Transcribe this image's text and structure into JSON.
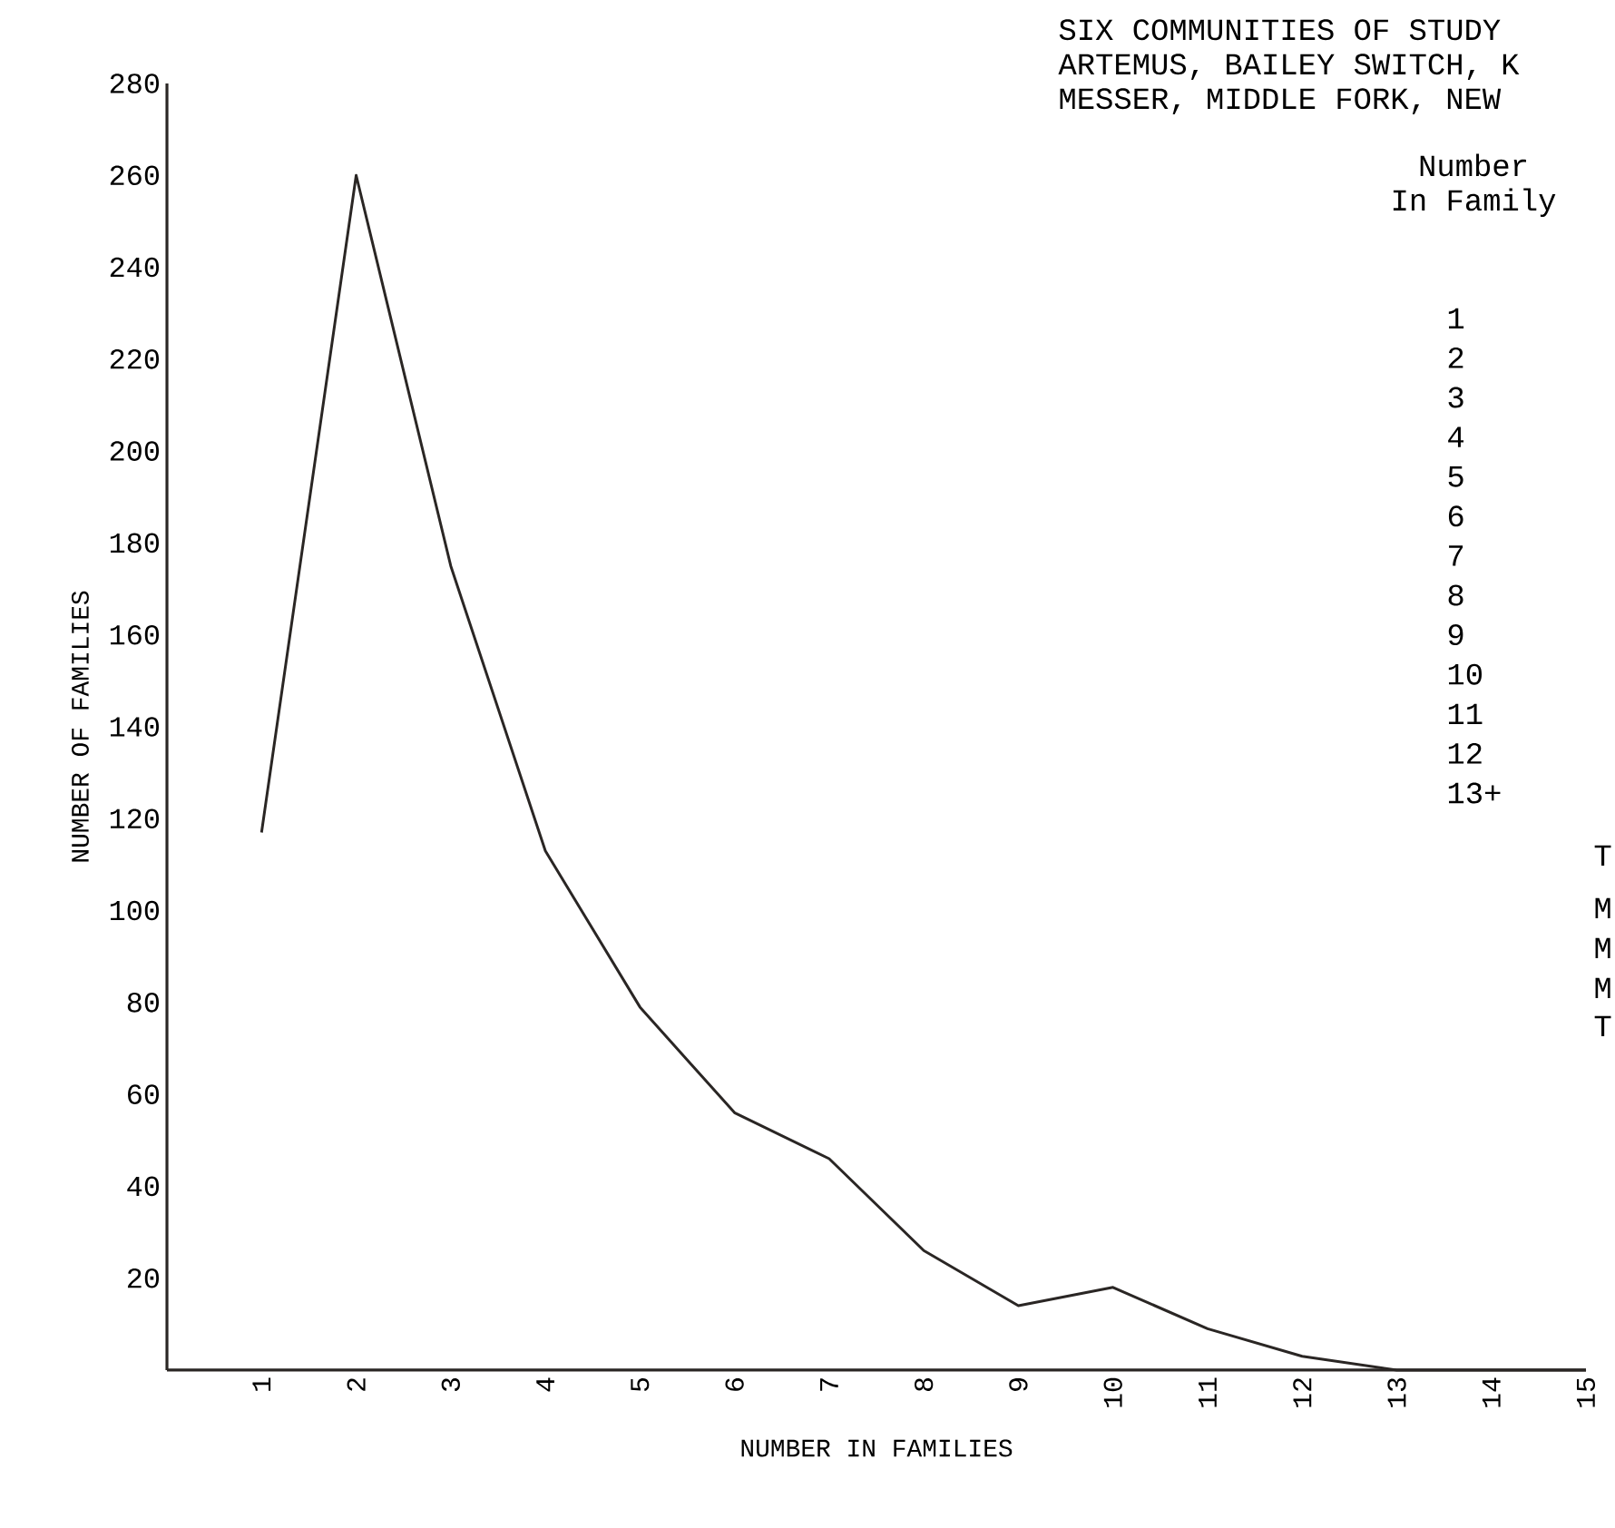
{
  "chart_data": {
    "type": "line",
    "xlabel": "NUMBER IN FAMILIES",
    "ylabel": "NUMBER OF FAMILIES",
    "x": [
      1,
      2,
      3,
      4,
      5,
      6,
      7,
      8,
      9,
      10,
      11,
      12,
      13,
      14,
      15
    ],
    "values": [
      117,
      260,
      175,
      113,
      79,
      56,
      46,
      26,
      14,
      18,
      9,
      3,
      0,
      0,
      0
    ],
    "color": "#2a2624",
    "xlim": [
      0,
      15
    ],
    "xticks": [
      1,
      2,
      3,
      4,
      5,
      6,
      7,
      8,
      9,
      10,
      11,
      12,
      13,
      14,
      15
    ],
    "ylim": [
      0,
      280
    ],
    "yticks": [
      20,
      40,
      60,
      80,
      100,
      120,
      140,
      160,
      180,
      200,
      220,
      240,
      260,
      280
    ],
    "marker": "none",
    "line_style": "solid",
    "annotations": [
      "SIX COMMUNITIES OF STUDY",
      "ARTEMUS, BAILEY SWITCH, K",
      "MESSER, MIDDLE FORK, NEW",
      "Number",
      "In Family",
      "1",
      "2",
      "3",
      "4",
      "5",
      "6",
      "7",
      "8",
      "9",
      "10",
      "11",
      "12",
      "13+",
      "T",
      "M",
      "M",
      "M",
      "T"
    ]
  }
}
